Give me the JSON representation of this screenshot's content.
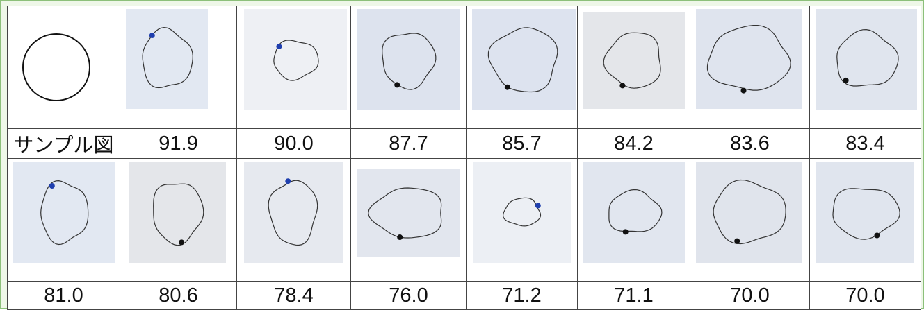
{
  "table": {
    "rows": [
      [
        "サンプル図",
        "91.9",
        "90.0",
        "87.7",
        "85.7",
        "84.2",
        "83.6",
        "83.4"
      ],
      [
        "81.0",
        "80.6",
        "78.4",
        "76.0",
        "71.2",
        "71.1",
        "70.0",
        "70.0"
      ]
    ]
  }
}
